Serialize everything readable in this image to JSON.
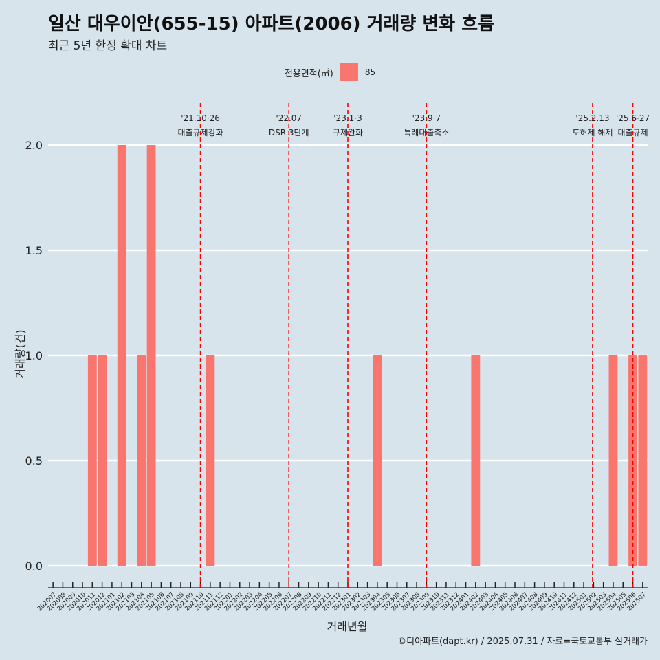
{
  "colors": {
    "background": "#d7e4ec",
    "bar": "#f8766d",
    "event_line": "#ff0000",
    "grid": "#ffffff"
  },
  "chart_data": {
    "type": "bar",
    "title": "일산 대우이안(655-15) 아파트(2006) 거래량 변화 흐름",
    "subtitle": "최근 5년 한정 확대 차트",
    "xlabel": "거래년월",
    "ylabel": "거래량(건)",
    "legend": {
      "title": "전용면적(㎡)",
      "position": "top",
      "entries": [
        "85"
      ]
    },
    "ylim": [
      -0.17,
      2.17
    ],
    "yticks": [
      "0.0",
      "0.5",
      "1.0",
      "1.5",
      "2.0"
    ],
    "grid": true,
    "categories": [
      "202007",
      "202008",
      "202009",
      "202010",
      "202011",
      "202012",
      "202101",
      "202102",
      "202103",
      "202104",
      "202105",
      "202106",
      "202107",
      "202108",
      "202109",
      "202110",
      "202111",
      "202112",
      "202201",
      "202202",
      "202203",
      "202204",
      "202205",
      "202206",
      "202207",
      "202208",
      "202209",
      "202210",
      "202211",
      "202212",
      "202301",
      "202302",
      "202303",
      "202304",
      "202305",
      "202306",
      "202307",
      "202308",
      "202309",
      "202310",
      "202311",
      "202312",
      "202401",
      "202402",
      "202403",
      "202404",
      "202405",
      "202406",
      "202407",
      "202408",
      "202409",
      "202410",
      "202411",
      "202412",
      "202501",
      "202502",
      "202503",
      "202504",
      "202505",
      "202506",
      "202507"
    ],
    "series": [
      {
        "name": "85",
        "values": [
          0,
          0,
          0,
          0,
          1,
          1,
          0,
          2,
          0,
          1,
          2,
          0,
          0,
          0,
          0,
          0,
          1,
          0,
          0,
          0,
          0,
          0,
          0,
          0,
          0,
          0,
          0,
          0,
          0,
          0,
          0,
          0,
          0,
          1,
          0,
          0,
          0,
          0,
          0,
          0,
          0,
          0,
          0,
          1,
          0,
          0,
          0,
          0,
          0,
          0,
          0,
          0,
          0,
          0,
          0,
          0,
          0,
          1,
          0,
          1,
          1
        ]
      }
    ],
    "events": [
      {
        "x": 15.5,
        "date": "'21.10·26",
        "label": "대출규제강화"
      },
      {
        "x": 24.5,
        "date": "'22.07",
        "label": "DSR 3단계"
      },
      {
        "x": 30.5,
        "date": "'23.1·3",
        "label": "규제완화"
      },
      {
        "x": 38.5,
        "date": "'23.9·7",
        "label": "특례대출축소"
      },
      {
        "x": 55.4,
        "date": "'25.2.13",
        "label": "토허제 해제"
      },
      {
        "x": 59.5,
        "date": "'25.6·27",
        "label": "대출규제"
      }
    ]
  },
  "caption": "©디아파트(dapt.kr) / 2025.07.31 / 자료=국토교통부 실거래가"
}
